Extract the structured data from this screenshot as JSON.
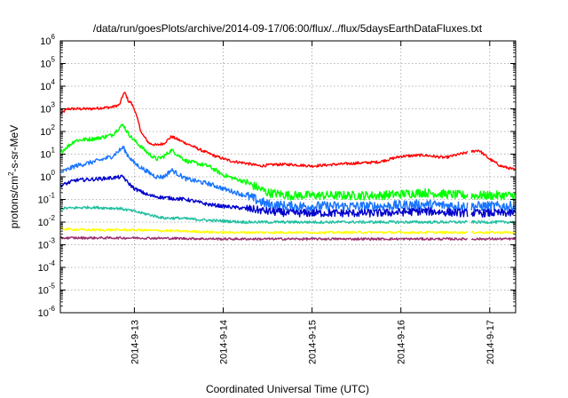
{
  "chart_data": {
    "type": "line",
    "title": "/data/run/goesPlots/archive/2014-09-17/06:00/flux/../flux/5daysEarthDataFluxes.txt",
    "xlabel": "Coordinated Universal Time (UTC)",
    "ylabel_parts": {
      "before": "protons/cm",
      "sup": "2",
      "after": "-s-sr-MeV"
    },
    "yscale": "log",
    "ylim": [
      1e-06,
      1000000.0
    ],
    "xlim": [
      "2014-09-12 04:00",
      "2014-09-17 07:00"
    ],
    "x_ticks": [
      "2014-9-13",
      "2014-9-14",
      "2014-9-15",
      "2014-9-16",
      "2014-9-17"
    ],
    "y_ticks": [
      {
        "base": "10",
        "exp": "-6"
      },
      {
        "base": "10",
        "exp": "-5"
      },
      {
        "base": "10",
        "exp": "-4"
      },
      {
        "base": "10",
        "exp": "-3"
      },
      {
        "base": "10",
        "exp": "-2"
      },
      {
        "base": "10",
        "exp": "-1"
      },
      {
        "base": "10",
        "exp": "0"
      },
      {
        "base": "10",
        "exp": "1"
      },
      {
        "base": "10",
        "exp": "2"
      },
      {
        "base": "10",
        "exp": "3"
      },
      {
        "base": "10",
        "exp": "4"
      },
      {
        "base": "10",
        "exp": "5"
      },
      {
        "base": "10",
        "exp": "6"
      }
    ],
    "grid": true,
    "data_gap": [
      "2014-09-16 18:00",
      "2014-09-16 19:00"
    ],
    "series": [
      {
        "color": "#ff0000",
        "x": [
          "2014-09-12 04:00",
          "2014-09-12 06:00",
          "2014-09-12 12:00",
          "2014-09-12 18:00",
          "2014-09-12 20:00",
          "2014-09-12 21:00",
          "2014-09-12 21:30",
          "2014-09-12 22:30",
          "2014-09-12 23:00",
          "2014-09-13 00:00",
          "2014-09-13 02:00",
          "2014-09-13 04:00",
          "2014-09-13 06:00",
          "2014-09-13 08:00",
          "2014-09-13 10:00",
          "2014-09-13 14:00",
          "2014-09-13 18:00",
          "2014-09-13 22:00",
          "2014-09-14 02:00",
          "2014-09-14 06:00",
          "2014-09-14 10:00",
          "2014-09-14 14:00",
          "2014-09-14 18:00",
          "2014-09-15 00:00",
          "2014-09-15 06:00",
          "2014-09-15 12:00",
          "2014-09-15 18:00",
          "2014-09-16 00:00",
          "2014-09-16 06:00",
          "2014-09-16 12:00",
          "2014-09-16 18:00",
          "2014-09-16 21:00",
          "2014-09-17 00:00",
          "2014-09-17 03:00",
          "2014-09-17 07:00"
        ],
        "y": [
          600,
          1000,
          1000,
          1200,
          1500,
          4500,
          5000,
          2000,
          2000,
          1000,
          80,
          30,
          25,
          30,
          60,
          30,
          15,
          8,
          5,
          4,
          3,
          3.5,
          3.5,
          3,
          3.5,
          4,
          4.5,
          8,
          9,
          7,
          12,
          15,
          6,
          3,
          2
        ]
      },
      {
        "color": "#00ff00",
        "x": [
          "2014-09-12 04:00",
          "2014-09-12 08:00",
          "2014-09-12 14:00",
          "2014-09-12 18:00",
          "2014-09-12 20:00",
          "2014-09-12 21:00",
          "2014-09-12 22:00",
          "2014-09-12 23:00",
          "2014-09-13 00:00",
          "2014-09-13 04:00",
          "2014-09-13 06:00",
          "2014-09-13 08:00",
          "2014-09-13 10:00",
          "2014-09-13 14:00",
          "2014-09-13 20:00",
          "2014-09-14 00:00",
          "2014-09-14 06:00",
          "2014-09-14 12:00",
          "2014-09-14 18:00",
          "2014-09-15 06:00",
          "2014-09-15 18:00",
          "2014-09-16 06:00",
          "2014-09-16 18:00",
          "2014-09-17 07:00"
        ],
        "y": [
          12,
          40,
          50,
          70,
          150,
          200,
          100,
          60,
          40,
          10,
          6,
          8,
          15,
          5,
          3,
          1.2,
          0.6,
          0.2,
          0.15,
          0.15,
          0.15,
          0.2,
          0.15,
          0.15
        ]
      },
      {
        "color": "#1a75ff",
        "x": [
          "2014-09-12 04:00",
          "2014-09-12 08:00",
          "2014-09-12 14:00",
          "2014-09-12 18:00",
          "2014-09-12 21:00",
          "2014-09-12 22:00",
          "2014-09-13 00:00",
          "2014-09-13 04:00",
          "2014-09-13 06:00",
          "2014-09-13 08:00",
          "2014-09-13 10:00",
          "2014-09-13 14:00",
          "2014-09-13 20:00",
          "2014-09-14 00:00",
          "2014-09-14 06:00",
          "2014-09-14 12:00",
          "2014-09-14 18:00",
          "2014-09-15 06:00",
          "2014-09-15 18:00",
          "2014-09-16 06:00",
          "2014-09-16 18:00",
          "2014-09-17 07:00"
        ],
        "y": [
          1.5,
          3,
          5,
          8,
          20,
          10,
          4,
          1.5,
          1,
          1,
          2,
          0.8,
          0.5,
          0.3,
          0.15,
          0.06,
          0.05,
          0.05,
          0.05,
          0.06,
          0.05,
          0.05
        ]
      },
      {
        "color": "#0000cd",
        "x": [
          "2014-09-12 04:00",
          "2014-09-12 08:00",
          "2014-09-12 14:00",
          "2014-09-12 18:00",
          "2014-09-12 21:00",
          "2014-09-12 22:00",
          "2014-09-13 00:00",
          "2014-09-13 04:00",
          "2014-09-13 08:00",
          "2014-09-13 14:00",
          "2014-09-13 20:00",
          "2014-09-14 00:00",
          "2014-09-14 06:00",
          "2014-09-14 12:00",
          "2014-09-14 18:00",
          "2014-09-15 06:00",
          "2014-09-15 18:00",
          "2014-09-16 06:00",
          "2014-09-16 18:00",
          "2014-09-17 07:00"
        ],
        "y": [
          0.4,
          0.7,
          0.8,
          0.9,
          1.0,
          0.6,
          0.3,
          0.15,
          0.12,
          0.1,
          0.06,
          0.05,
          0.04,
          0.03,
          0.025,
          0.025,
          0.025,
          0.03,
          0.025,
          0.025
        ]
      },
      {
        "color": "#20c0a0",
        "x": [
          "2014-09-12 04:00",
          "2014-09-12 12:00",
          "2014-09-12 20:00",
          "2014-09-13 00:00",
          "2014-09-13 08:00",
          "2014-09-13 12:00",
          "2014-09-13 20:00",
          "2014-09-14 06:00",
          "2014-09-14 18:00",
          "2014-09-15 12:00",
          "2014-09-16 06:00",
          "2014-09-17 07:00"
        ],
        "y": [
          0.04,
          0.045,
          0.04,
          0.03,
          0.015,
          0.015,
          0.012,
          0.01,
          0.01,
          0.01,
          0.01,
          0.01
        ]
      },
      {
        "color": "#ffff00",
        "x": [
          "2014-09-12 04:00",
          "2014-09-12 12:00",
          "2014-09-13 00:00",
          "2014-09-13 12:00",
          "2014-09-14 00:00",
          "2014-09-15 00:00",
          "2014-09-16 00:00",
          "2014-09-17 07:00"
        ],
        "y": [
          0.005,
          0.0045,
          0.0045,
          0.004,
          0.0035,
          0.0035,
          0.0035,
          0.0035
        ]
      },
      {
        "color": "#9b2d6e",
        "x": [
          "2014-09-12 04:00",
          "2014-09-13 00:00",
          "2014-09-14 00:00",
          "2014-09-15 00:00",
          "2014-09-16 00:00",
          "2014-09-17 07:00"
        ],
        "y": [
          0.002,
          0.002,
          0.0018,
          0.0018,
          0.0018,
          0.0018
        ]
      }
    ]
  }
}
